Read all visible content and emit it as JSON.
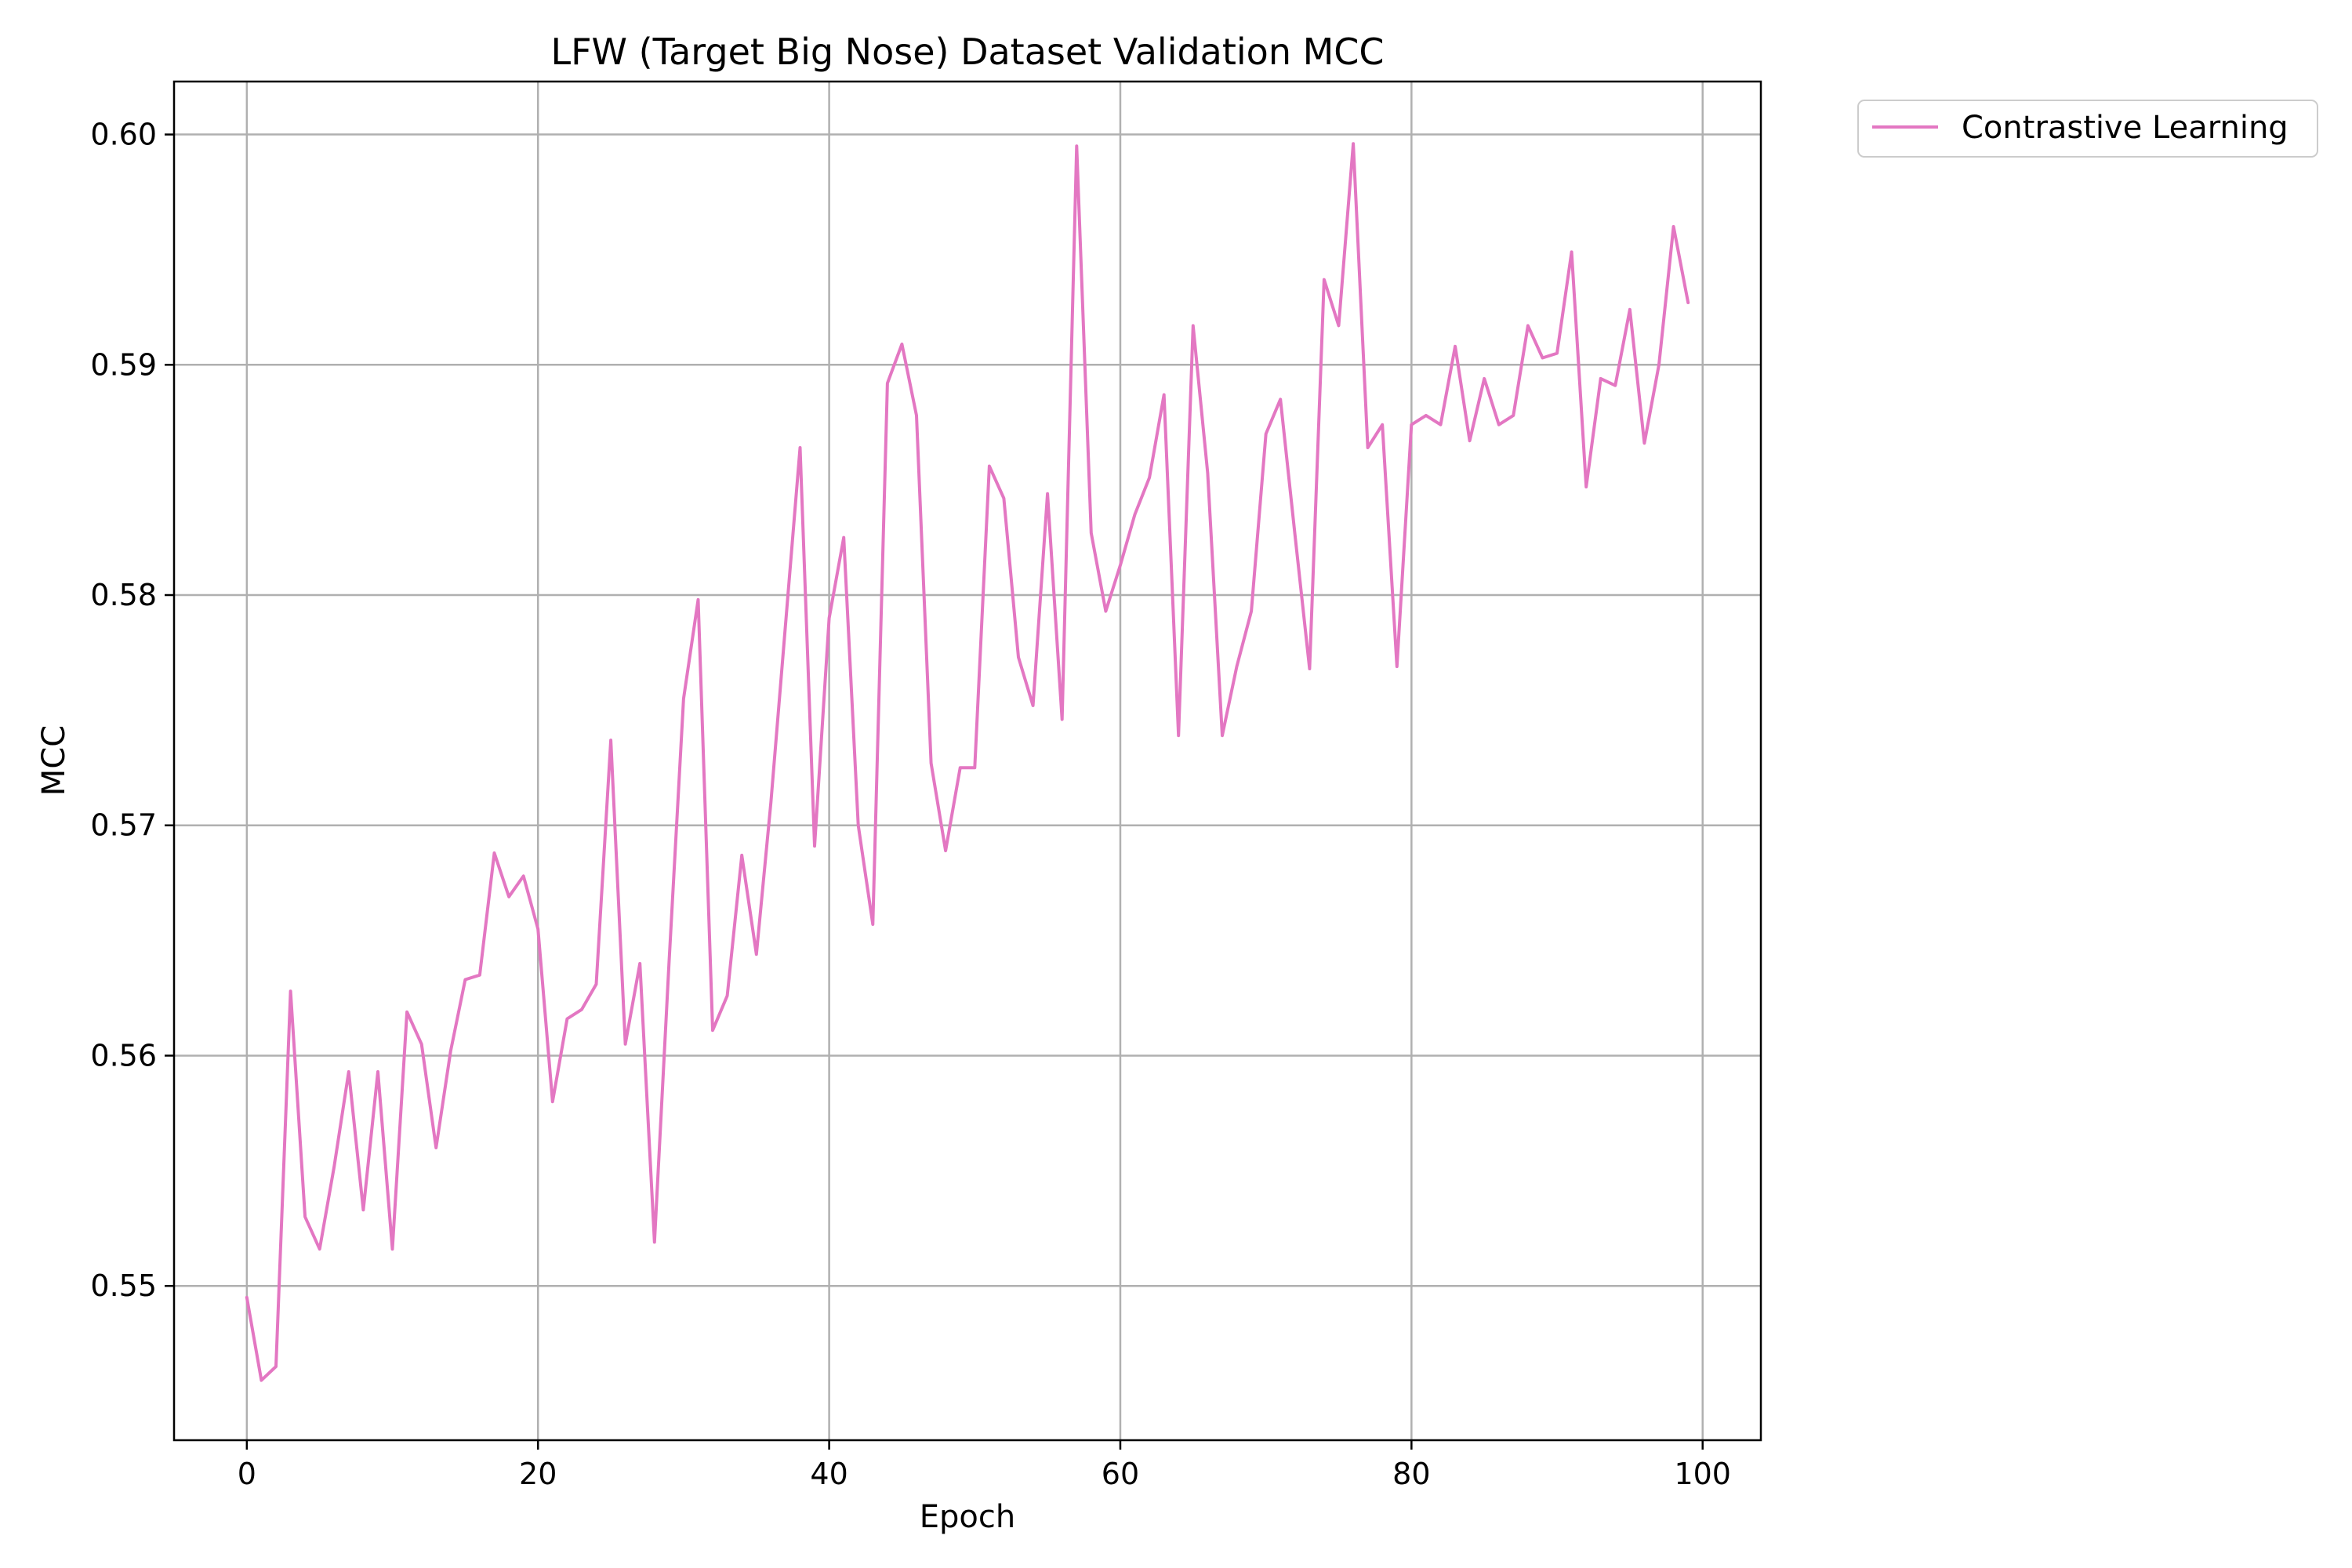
{
  "chart_data": {
    "type": "line",
    "title": "LFW (Target Big Nose) Dataset Validation MCC",
    "xlabel": "Epoch",
    "ylabel": "MCC",
    "xlim": [
      -5,
      104
    ],
    "ylim": [
      0.5433,
      0.6023
    ],
    "xticks": [
      0,
      20,
      40,
      60,
      80,
      100
    ],
    "xtick_labels": [
      "0",
      "20",
      "40",
      "60",
      "80",
      "100"
    ],
    "yticks": [
      0.55,
      0.56,
      0.57,
      0.58,
      0.59,
      0.6
    ],
    "ytick_labels": [
      "0.55",
      "0.56",
      "0.57",
      "0.58",
      "0.59",
      "0.60"
    ],
    "grid": true,
    "legend_position": "outside-top-right",
    "series": [
      {
        "name": "Contrastive Learning",
        "color": "#e377c2",
        "x": [
          0,
          1,
          2,
          3,
          4,
          5,
          6,
          7,
          8,
          9,
          10,
          11,
          12,
          13,
          14,
          15,
          16,
          17,
          18,
          19,
          20,
          21,
          22,
          23,
          24,
          25,
          26,
          27,
          28,
          29,
          30,
          31,
          32,
          33,
          34,
          35,
          36,
          37,
          38,
          39,
          40,
          41,
          42,
          43,
          44,
          45,
          46,
          47,
          48,
          49,
          50,
          51,
          52,
          53,
          54,
          55,
          56,
          57,
          58,
          59,
          60,
          61,
          62,
          63,
          64,
          65,
          66,
          67,
          68,
          69,
          70,
          71,
          72,
          73,
          74,
          75,
          76,
          77,
          78,
          79,
          80,
          81,
          82,
          83,
          84,
          85,
          86,
          87,
          88,
          89,
          90,
          91,
          92,
          93,
          94,
          95,
          96,
          97,
          98,
          99
        ],
        "values": [
          0.5495,
          0.5459,
          0.5465,
          0.5628,
          0.553,
          0.5516,
          0.5552,
          0.5593,
          0.5533,
          0.5593,
          0.5516,
          0.5619,
          0.5605,
          0.556,
          0.5602,
          0.5633,
          0.5635,
          0.5688,
          0.5669,
          0.5678,
          0.5655,
          0.558,
          0.5616,
          0.562,
          0.5631,
          0.5737,
          0.5605,
          0.564,
          0.5519,
          0.564,
          0.5755,
          0.5798,
          0.5611,
          0.5626,
          0.5687,
          0.5644,
          0.571,
          0.5787,
          0.5864,
          0.5691,
          0.579,
          0.5825,
          0.57,
          0.5657,
          0.5892,
          0.5909,
          0.5878,
          0.5727,
          0.5689,
          0.5725,
          0.5725,
          0.5856,
          0.5842,
          0.5773,
          0.5752,
          0.5844,
          0.5746,
          0.5995,
          0.5827,
          0.5793,
          0.5813,
          0.5835,
          0.5851,
          0.5887,
          0.5739,
          0.5917,
          0.5853,
          0.5739,
          0.5769,
          0.5793,
          0.587,
          0.5885,
          0.5826,
          0.5768,
          0.5937,
          0.5917,
          0.5996,
          0.5864,
          0.5874,
          0.5769,
          0.5874,
          0.5878,
          0.5874,
          0.5908,
          0.5867,
          0.5894,
          0.5874,
          0.5878,
          0.5917,
          0.5903,
          0.5905,
          0.5949,
          0.5847,
          0.5894,
          0.5891,
          0.5924,
          0.5866,
          0.59,
          0.596,
          0.5927
        ]
      }
    ]
  }
}
